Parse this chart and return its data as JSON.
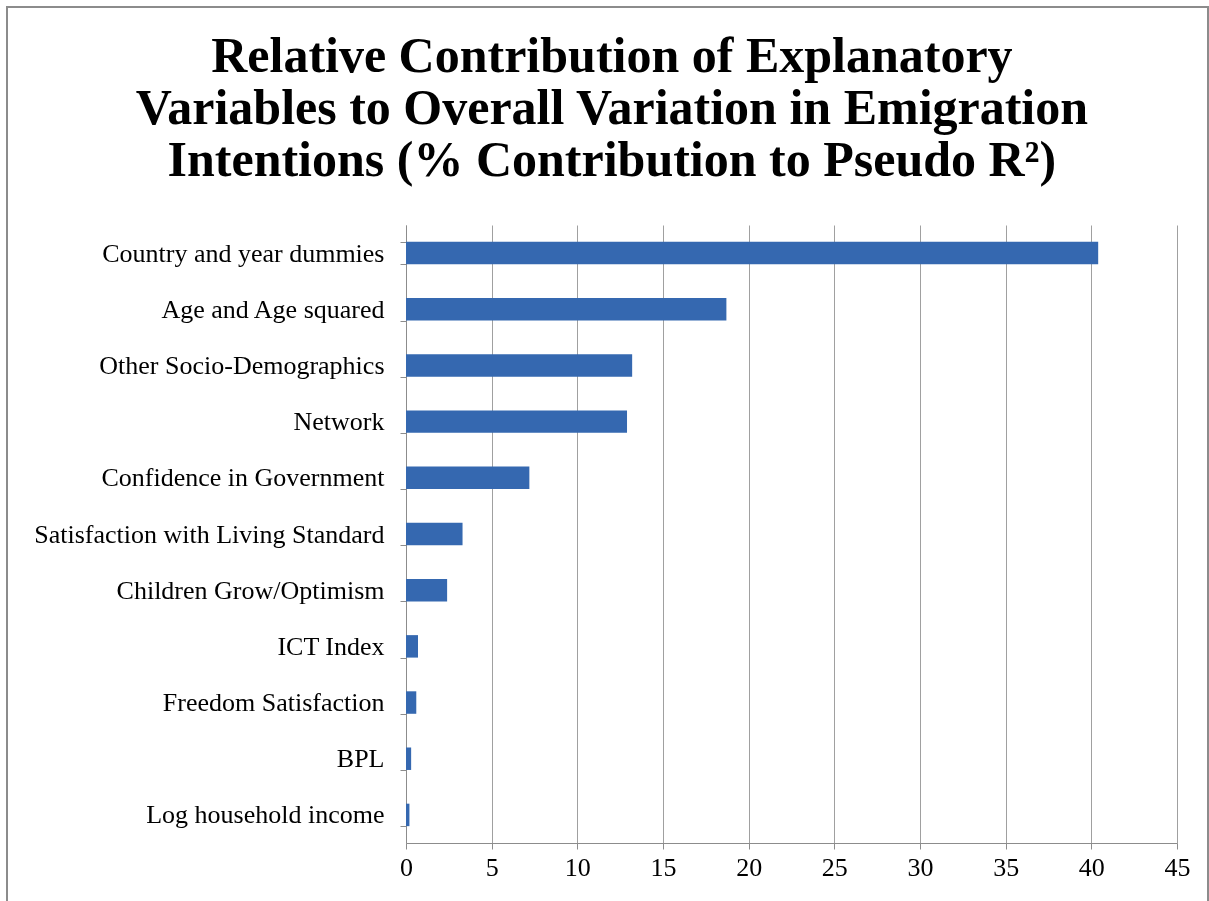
{
  "chart_data": {
    "type": "bar",
    "orientation": "horizontal",
    "title": "Relative Contribution of Explanatory Variables to Overall Variation in Emigration Intentions (% Contribution to Pseudo R²)",
    "categories": [
      "Country and year dummies",
      "Age and Age squared",
      "Other Socio-Demographics",
      "Network",
      "Confidence in Government",
      "Satisfaction with Living Standard",
      "Children Grow/Optimism",
      "ICT Index",
      "Freedom Satisfaction",
      "BPL",
      "Log household income"
    ],
    "values": [
      40.4,
      18.7,
      13.2,
      12.9,
      7.2,
      3.3,
      2.4,
      0.7,
      0.6,
      0.3,
      0.2
    ],
    "color": "#3568b0",
    "xlim": [
      0,
      45
    ],
    "xticks": [
      0,
      5,
      10,
      15,
      20,
      25,
      30,
      35,
      40,
      45
    ],
    "grid": "x"
  }
}
